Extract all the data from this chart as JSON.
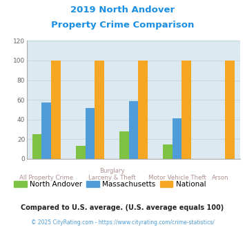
{
  "title_line1": "2019 North Andover",
  "title_line2": "Property Crime Comparison",
  "title_color": "#1a8fe3",
  "north_andover": [
    25,
    13,
    28,
    15,
    0
  ],
  "massachusetts": [
    57,
    52,
    59,
    41,
    0
  ],
  "national": [
    100,
    100,
    100,
    100,
    100
  ],
  "north_andover_color": "#7dc242",
  "massachusetts_color": "#4f9dd8",
  "national_color": "#f5a623",
  "ylim": [
    0,
    120
  ],
  "yticks": [
    0,
    20,
    40,
    60,
    80,
    100,
    120
  ],
  "background_color": "#dce9f0",
  "grid_color": "#c5d8e0",
  "legend_label_na": "North Andover",
  "legend_label_ma": "Massachusetts",
  "legend_label_nat": "National",
  "footnote1": "Compared to U.S. average. (U.S. average equals 100)",
  "footnote2": "© 2025 CityRating.com - https://www.cityrating.com/crime-statistics/",
  "footnote1_color": "#222222",
  "footnote2_color": "#4f9dd8",
  "xlabel_color": "#b09090",
  "bar_width": 0.22
}
